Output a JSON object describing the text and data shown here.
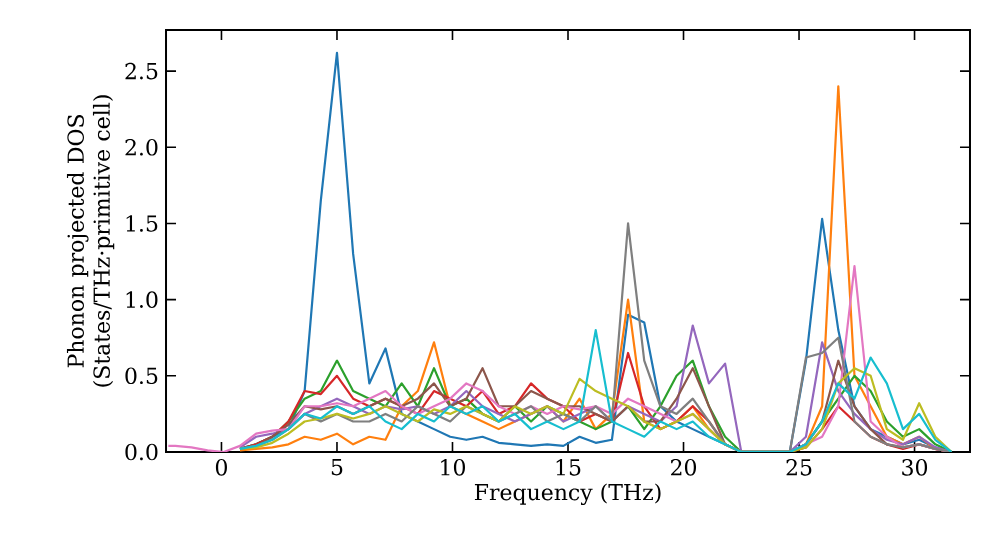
{
  "chart_data": {
    "type": "line",
    "xlabel": "Frequency (THz)",
    "ylabel": "Phonon projected DOS (States/THz·primitive cell)",
    "xlim": [
      -2.4,
      32.4
    ],
    "ylim": [
      0,
      2.77
    ],
    "xticks": [
      0,
      5,
      10,
      15,
      20,
      25,
      30
    ],
    "yticks": [
      {
        "value": 0,
        "label": "0.0"
      },
      0.5,
      {
        "value": 1,
        "label": "1.0"
      },
      1.5,
      {
        "value": 2,
        "label": "2.0"
      },
      2.5
    ],
    "grid": false,
    "marker": "none",
    "line_style": "solid",
    "x": [
      -2.3,
      -2,
      -1.3,
      -0.6,
      0.1,
      0.8,
      1.5,
      2.2,
      2.9,
      3.6,
      4.3,
      5.0,
      5.7,
      6.4,
      7.1,
      7.8,
      8.5,
      9.2,
      9.9,
      10.6,
      11.3,
      12,
      12.7,
      13.4,
      14.1,
      14.8,
      15.5,
      16.2,
      16.9,
      17.6,
      18.3,
      19,
      19.7,
      20.4,
      21.1,
      21.8,
      22.5,
      23.2,
      23.9,
      24.6,
      25.3,
      26,
      26.7,
      27.4,
      28.1,
      28.8,
      29.5,
      30.2,
      30.9,
      31.6
    ],
    "series": [
      {
        "color": "#1f77b4",
        "values": [
          null,
          null,
          null,
          null,
          null,
          0.02,
          0.05,
          0.1,
          0.15,
          0.4,
          1.65,
          2.62,
          1.3,
          0.45,
          0.68,
          0.25,
          0.2,
          0.15,
          0.1,
          0.08,
          0.1,
          0.06,
          0.05,
          0.04,
          0.05,
          0.04,
          0.1,
          0.06,
          0.08,
          0.9,
          0.85,
          0.3,
          0.2,
          0.15,
          0.1,
          0.05,
          0,
          0,
          0,
          0,
          0.6,
          1.53,
          0.8,
          0.3,
          0.15,
          0.1,
          0.05,
          0.08,
          0.03,
          0
        ]
      },
      {
        "color": "#ff7f0e",
        "values": [
          null,
          null,
          null,
          null,
          null,
          0.01,
          0.02,
          0.03,
          0.05,
          0.1,
          0.08,
          0.12,
          0.05,
          0.1,
          0.08,
          0.3,
          0.4,
          0.72,
          0.3,
          0.25,
          0.2,
          0.15,
          0.2,
          0.25,
          0.3,
          0.2,
          0.35,
          0.15,
          0.25,
          1.0,
          0.2,
          0.15,
          0.2,
          0.3,
          0.15,
          0.05,
          0,
          0,
          0,
          0,
          0.05,
          0.3,
          2.4,
          0.5,
          0.3,
          0.1,
          0.05,
          0.1,
          0.02,
          0
        ]
      },
      {
        "color": "#2ca02c",
        "values": [
          null,
          null,
          null,
          null,
          null,
          0.02,
          0.05,
          0.1,
          0.2,
          0.35,
          0.4,
          0.6,
          0.4,
          0.35,
          0.3,
          0.45,
          0.3,
          0.55,
          0.3,
          0.35,
          0.25,
          0.2,
          0.3,
          0.2,
          0.3,
          0.25,
          0.2,
          0.15,
          0.2,
          0.3,
          0.15,
          0.3,
          0.5,
          0.6,
          0.3,
          0.1,
          0,
          0,
          0,
          0,
          0.05,
          0.2,
          0.35,
          0.5,
          0.4,
          0.2,
          0.1,
          0.15,
          0.05,
          0
        ]
      },
      {
        "color": "#d62728",
        "values": [
          null,
          null,
          null,
          null,
          null,
          0.02,
          0.05,
          0.1,
          0.2,
          0.4,
          0.38,
          0.5,
          0.35,
          0.3,
          0.35,
          0.3,
          0.25,
          0.4,
          0.35,
          0.3,
          0.4,
          0.25,
          0.3,
          0.45,
          0.35,
          0.3,
          0.2,
          0.25,
          0.2,
          0.65,
          0.3,
          0.15,
          0.2,
          0.3,
          0.2,
          0.05,
          0,
          0,
          0,
          0,
          0.03,
          0.15,
          0.3,
          0.2,
          0.1,
          0.05,
          0.02,
          0.05,
          0.02,
          0
        ]
      },
      {
        "color": "#9467bd",
        "values": [
          null,
          null,
          null,
          null,
          null,
          0.03,
          0.1,
          0.12,
          0.15,
          0.25,
          0.3,
          0.35,
          0.3,
          0.25,
          0.3,
          0.28,
          0.3,
          0.25,
          0.3,
          0.4,
          0.3,
          0.25,
          0.2,
          0.25,
          0.3,
          0.2,
          0.25,
          0.3,
          0.2,
          0.3,
          0.25,
          0.2,
          0.3,
          0.83,
          0.45,
          0.58,
          0,
          0,
          0,
          0,
          0.1,
          0.72,
          0.4,
          0.25,
          0.15,
          0.08,
          0.05,
          0.1,
          0.03,
          0
        ]
      },
      {
        "color": "#8c564b",
        "values": [
          null,
          null,
          null,
          null,
          null,
          0.02,
          0.04,
          0.1,
          0.18,
          0.3,
          0.28,
          0.3,
          0.25,
          0.3,
          0.35,
          0.3,
          0.35,
          0.45,
          0.3,
          0.35,
          0.55,
          0.3,
          0.3,
          0.4,
          0.35,
          0.3,
          0.3,
          0.25,
          0.2,
          0.3,
          0.2,
          0.2,
          0.35,
          0.55,
          0.3,
          0.05,
          0,
          0,
          0,
          0,
          0.05,
          0.2,
          0.6,
          0.3,
          0.15,
          0.05,
          0.03,
          0.05,
          0.02,
          0
        ]
      },
      {
        "color": "#e377c2",
        "values": [
          0.04,
          0.04,
          0.03,
          0.01,
          0,
          0.04,
          0.12,
          0.14,
          0.15,
          0.3,
          0.3,
          0.32,
          0.3,
          0.35,
          0.4,
          0.3,
          0.25,
          0.3,
          0.35,
          0.45,
          0.4,
          0.3,
          0.25,
          0.3,
          0.25,
          0.3,
          0.28,
          0.3,
          0.25,
          0.35,
          0.3,
          0.25,
          0.2,
          0.25,
          0.15,
          0.05,
          0,
          0,
          0,
          0,
          0.05,
          0.1,
          0.3,
          1.22,
          0.2,
          0.1,
          0.03,
          0.05,
          0.02,
          0
        ]
      },
      {
        "color": "#7f7f7f",
        "values": [
          null,
          null,
          null,
          null,
          null,
          0.02,
          0.04,
          0.08,
          0.15,
          0.25,
          0.2,
          0.25,
          0.2,
          0.2,
          0.25,
          0.2,
          0.3,
          0.25,
          0.2,
          0.3,
          0.25,
          0.2,
          0.25,
          0.3,
          0.2,
          0.25,
          0.2,
          0.3,
          0.2,
          1.5,
          0.6,
          0.3,
          0.25,
          0.35,
          0.2,
          0.05,
          0,
          0,
          0,
          0,
          0.62,
          0.65,
          0.75,
          0.2,
          0.1,
          0.05,
          0.03,
          0.05,
          0.02,
          0
        ]
      },
      {
        "color": "#bcbd22",
        "values": [
          null,
          null,
          null,
          null,
          null,
          0.02,
          0.03,
          0.06,
          0.12,
          0.2,
          0.22,
          0.25,
          0.22,
          0.25,
          0.3,
          0.25,
          0.2,
          0.28,
          0.25,
          0.3,
          0.25,
          0.2,
          0.3,
          0.25,
          0.3,
          0.25,
          0.48,
          0.4,
          0.35,
          0.3,
          0.2,
          0.15,
          0.2,
          0.25,
          0.15,
          0.05,
          0,
          0,
          0,
          0,
          0.03,
          0.15,
          0.45,
          0.55,
          0.5,
          0.15,
          0.08,
          0.32,
          0.1,
          0
        ]
      },
      {
        "color": "#17becf",
        "values": [
          null,
          null,
          null,
          null,
          null,
          0.02,
          0.04,
          0.08,
          0.15,
          0.25,
          0.22,
          0.3,
          0.25,
          0.3,
          0.2,
          0.15,
          0.25,
          0.2,
          0.3,
          0.25,
          0.3,
          0.2,
          0.25,
          0.15,
          0.2,
          0.15,
          0.2,
          0.8,
          0.2,
          0.15,
          0.1,
          0.2,
          0.15,
          0.2,
          0.1,
          0.05,
          0,
          0,
          0,
          0,
          0.05,
          0.2,
          0.45,
          0.35,
          0.62,
          0.45,
          0.15,
          0.25,
          0.08,
          0
        ]
      }
    ]
  }
}
